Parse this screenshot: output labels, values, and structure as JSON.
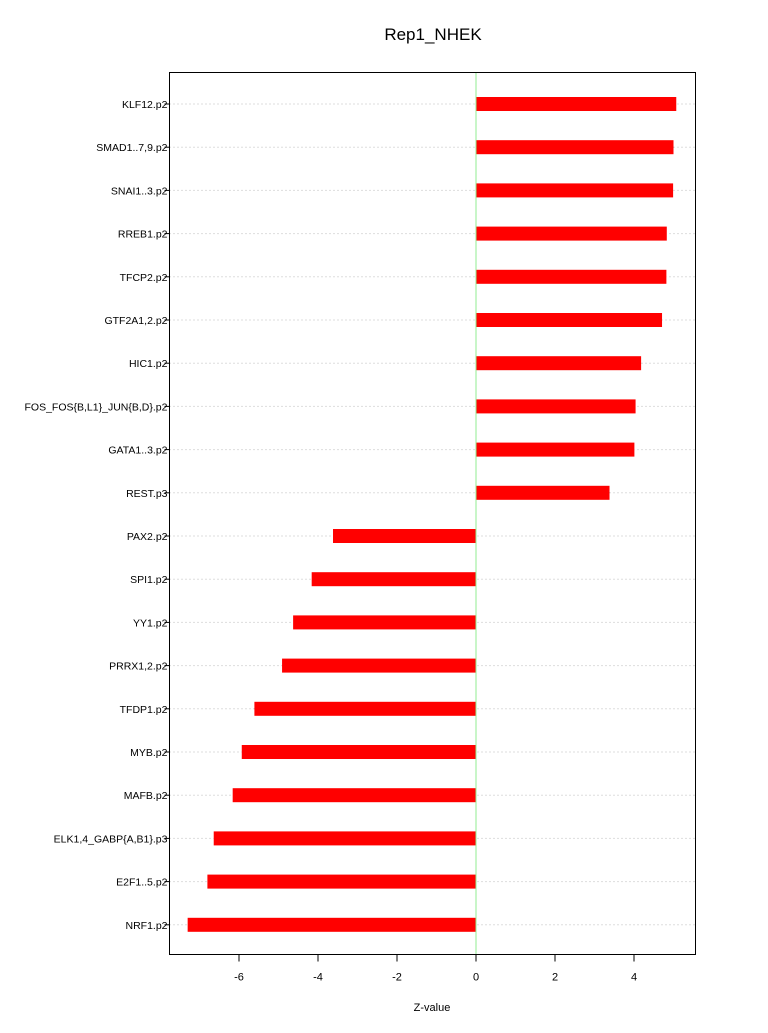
{
  "chart_data": {
    "type": "bar",
    "orientation": "horizontal",
    "title": "Rep1_NHEK",
    "xlabel": "Z-value",
    "ylabel": "",
    "xlim": [
      -7.8,
      5.5
    ],
    "xticks": [
      -6,
      -4,
      -2,
      0,
      2,
      4
    ],
    "xtick_labels": [
      "-6",
      "-4",
      "-2",
      "0",
      "2",
      "4"
    ],
    "grid": "horizontal dotted",
    "reference_line": 0,
    "categories": [
      "KLF12.p2",
      "SMAD1..7,9.p2",
      "SNAI1..3.p2",
      "RREB1.p2",
      "TFCP2.p2",
      "GTF2A1,2.p2",
      "HIC1.p2",
      "FOS_FOS{B,L1}_JUN{B,D}.p2",
      "GATA1..3.p2",
      "REST.p3",
      "PAX2.p2",
      "SPI1.p2",
      "YY1.p2",
      "PRRX1,2.p2",
      "TFDP1.p2",
      "MYB.p2",
      "MAFB.p2",
      "ELK1,4_GABP{A,B1}.p3",
      "E2F1..5.p2",
      "NRF1.p2"
    ],
    "values": [
      5.07,
      5.0,
      4.99,
      4.83,
      4.82,
      4.71,
      4.18,
      4.04,
      4.01,
      3.38,
      -3.62,
      -4.16,
      -4.63,
      -4.91,
      -5.61,
      -5.93,
      -6.16,
      -6.64,
      -6.8,
      -7.3
    ],
    "colors": {
      "bar": "#ff0000",
      "zero_line": "#90ee90",
      "grid": "#bbbbbb",
      "frame": "#000000"
    }
  }
}
